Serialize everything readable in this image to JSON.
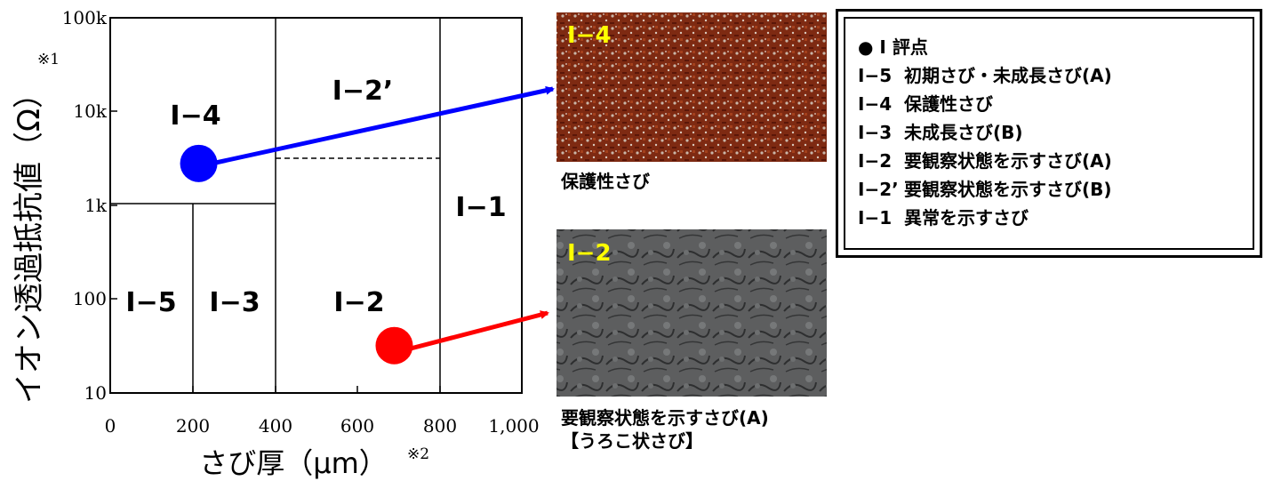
{
  "axes": {
    "ylabel": "イオン透過抵抗値（Ω）",
    "ylabel_note": "※1",
    "xlabel": "さび厚（μm）",
    "xlabel_note": "※2",
    "yticks": [
      "100k",
      "10k",
      "1k",
      "100",
      "10"
    ],
    "xticks": [
      "0",
      "200",
      "400",
      "600",
      "800",
      "1,000"
    ]
  },
  "regions": {
    "i4": "I−4",
    "i2p": "I−2’",
    "i1": "I−1",
    "i5": "I−5",
    "i3": "I−3",
    "i2": "I−2"
  },
  "chart_data": {
    "type": "scatter",
    "x_scale": "linear",
    "y_scale": "log",
    "xlim": [
      0,
      1000
    ],
    "ylim": [
      10,
      100000
    ],
    "xlabel": "さび厚（μm）",
    "ylabel": "イオン透過抵抗値（Ω）",
    "series": [
      {
        "name": "保護性さび",
        "x": [
          215
        ],
        "y": [
          2800
        ],
        "color": "#0000ff"
      },
      {
        "name": "要観察状態を示すさび(A)",
        "x": [
          690
        ],
        "y": [
          32
        ],
        "color": "#ff0000"
      }
    ],
    "region_boundaries": {
      "vertical_x": [
        200,
        400,
        800
      ],
      "horizontal_y": [
        1000,
        3000
      ]
    },
    "grid": false
  },
  "photos": {
    "top": {
      "tag": "I−4",
      "caption": "保護性さび"
    },
    "bottom": {
      "tag": "I−2",
      "caption_line1": "要観察状態を示すさび(A)",
      "caption_line2": "【うろこ状さび】"
    }
  },
  "legend": {
    "title": "● I 評点",
    "rows": [
      {
        "code": "I−5",
        "text": "初期さび・未成長さび(A)"
      },
      {
        "code": "I−4",
        "text": "保護性さび"
      },
      {
        "code": "I−3",
        "text": "未成長さび(B)"
      },
      {
        "code": "I−2",
        "text": "要観察状態を示すさび(A)"
      },
      {
        "code": "I−2’",
        "text": "要観察状態を示すさび(B)"
      },
      {
        "code": "I−1",
        "text": "異常を示すさび"
      }
    ]
  },
  "colors": {
    "blue": "#0000ff",
    "red": "#ff0000",
    "rust": "#8a2a10",
    "rust_dark": "#5a1608",
    "scale": "#5d5e5f"
  }
}
